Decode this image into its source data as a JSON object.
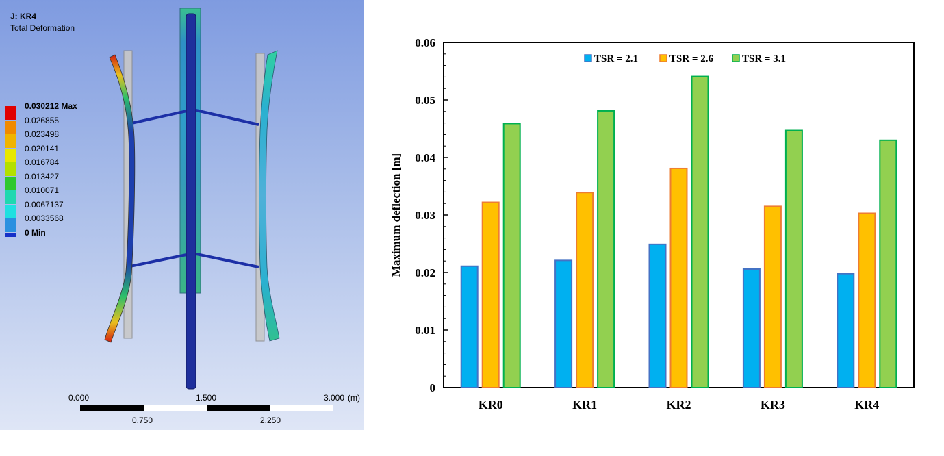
{
  "simulation": {
    "title": "J: KR4",
    "subtitle": "Total Deformation",
    "legend": [
      {
        "label": "0.030212 Max",
        "color": "#e00000",
        "bold": true
      },
      {
        "label": "0.026855",
        "color": "#f08a00"
      },
      {
        "label": "0.023498",
        "color": "#f0b400"
      },
      {
        "label": "0.020141",
        "color": "#e8e800"
      },
      {
        "label": "0.016784",
        "color": "#b4e000"
      },
      {
        "label": "0.013427",
        "color": "#2ec82e"
      },
      {
        "label": "0.010071",
        "color": "#20d8b0"
      },
      {
        "label": "0.0067137",
        "color": "#20e0e0"
      },
      {
        "label": "0.0033568",
        "color": "#2a90e0"
      },
      {
        "label": "0 Min",
        "color": "#1530c8",
        "bold": true
      }
    ],
    "scale": {
      "top_labels": [
        "0.000",
        "1.500",
        "3.000"
      ],
      "unit": "(m)",
      "bottom_labels": [
        "0.750",
        "2.250"
      ]
    }
  },
  "chart_data": {
    "type": "bar",
    "title": "",
    "xlabel": "",
    "ylabel": "Maximum deflection [m]",
    "ylim": [
      0,
      0.06
    ],
    "yticks": [
      "0",
      "0.01",
      "0.02",
      "0.03",
      "0.04",
      "0.05",
      "0.06"
    ],
    "categories": [
      "KR0",
      "KR1",
      "KR2",
      "KR3",
      "KR4"
    ],
    "legend_position": "top-center",
    "series": [
      {
        "name": "TSR = 2.1",
        "color": "#00b0f0",
        "border": "#4472c4",
        "values": [
          0.0211,
          0.0221,
          0.0249,
          0.0206,
          0.0198
        ]
      },
      {
        "name": "TSR = 2.6",
        "color": "#ffc000",
        "border": "#ed7d31",
        "values": [
          0.0322,
          0.0339,
          0.0381,
          0.0315,
          0.0303
        ]
      },
      {
        "name": "TSR = 3.1",
        "color": "#92d050",
        "border": "#00b050",
        "values": [
          0.0459,
          0.0481,
          0.0541,
          0.0447,
          0.043
        ]
      }
    ]
  }
}
